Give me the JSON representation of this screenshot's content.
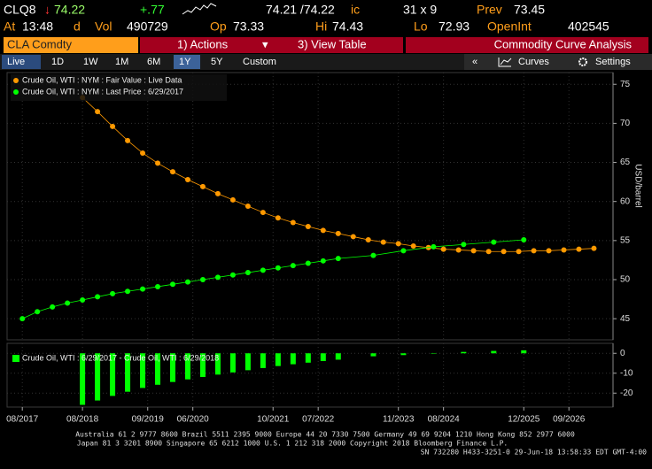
{
  "header": {
    "ticker": "CLQ8",
    "last": "74.22",
    "change": "+.77",
    "bid_ask": "74.21 /74.22",
    "bid_ask_flag": "ic",
    "size": "31 x 9",
    "prev_label": "Prev",
    "prev": "73.45",
    "time_label": "At",
    "time": "13:48",
    "time_flag": "d",
    "vol_label": "Vol",
    "vol": "490729",
    "open_label": "Op",
    "open": "73.33",
    "high_label": "Hi",
    "high": "74.43",
    "low_label": "Lo",
    "low": "72.93",
    "oi_label": "OpenInt",
    "oi": "402545"
  },
  "toolbar": {
    "security": "CLA Comdty",
    "menu_actions": "1) Actions",
    "menu_view": "3) View Table",
    "function_title": "Commodity Curve Analysis"
  },
  "tabs": {
    "items": [
      "Live",
      "1D",
      "1W",
      "1M",
      "6M",
      "1Y",
      "5Y",
      "Custom"
    ],
    "right_back": "«",
    "curves": "Curves",
    "settings": "Settings"
  },
  "chart_data": [
    {
      "type": "line",
      "y_label": "USD/barrel",
      "legend": "top-left",
      "grid": true,
      "xlim": [
        2017.33,
        2027.4
      ],
      "ylim": [
        42.3,
        76.5
      ],
      "yticks": [
        45,
        50,
        55,
        60,
        65,
        70,
        75
      ],
      "series": [
        {
          "name": "Crude Oil, WTI : NYM : Fair Value : Live Data",
          "color": "#ff9900",
          "x": [
            2018.583,
            2018.833,
            2019.083,
            2019.333,
            2019.583,
            2019.833,
            2020.083,
            2020.333,
            2020.583,
            2020.833,
            2021.083,
            2021.333,
            2021.583,
            2021.833,
            2022.083,
            2022.333,
            2022.583,
            2022.833,
            2023.083,
            2023.333,
            2023.583,
            2023.833,
            2024.083,
            2024.333,
            2024.583,
            2024.833,
            2025.083,
            2025.333,
            2025.583,
            2025.833,
            2026.083,
            2026.333,
            2026.583,
            2026.833,
            2027.083
          ],
          "values": [
            73.3,
            71.5,
            69.6,
            67.8,
            66.2,
            64.9,
            63.8,
            62.8,
            61.9,
            61.0,
            60.2,
            59.4,
            58.6,
            57.9,
            57.3,
            56.8,
            56.3,
            55.9,
            55.5,
            55.1,
            54.8,
            54.6,
            54.3,
            54.1,
            53.9,
            53.8,
            53.7,
            53.6,
            53.6,
            53.6,
            53.7,
            53.7,
            53.8,
            53.9,
            54.0
          ]
        },
        {
          "name": "Crude Oil, WTI : NYM : Last Price : 6/29/2017",
          "color": "#00ff00",
          "x": [
            2017.583,
            2017.833,
            2018.083,
            2018.333,
            2018.583,
            2018.833,
            2019.083,
            2019.333,
            2019.583,
            2019.833,
            2020.083,
            2020.333,
            2020.583,
            2020.833,
            2021.083,
            2021.333,
            2021.583,
            2021.833,
            2022.083,
            2022.333,
            2022.583,
            2022.833,
            2023.417,
            2023.917,
            2024.417,
            2024.917,
            2025.417,
            2025.917
          ],
          "values": [
            45.0,
            45.9,
            46.5,
            47.0,
            47.4,
            47.8,
            48.2,
            48.5,
            48.8,
            49.1,
            49.4,
            49.7,
            50.0,
            50.3,
            50.6,
            50.9,
            51.2,
            51.5,
            51.8,
            52.1,
            52.4,
            52.7,
            53.1,
            53.7,
            54.2,
            54.5,
            54.8,
            55.1
          ]
        }
      ]
    },
    {
      "type": "bar",
      "legend": "top-left",
      "grid": true,
      "xlim": [
        2017.33,
        2027.4
      ],
      "ylim": [
        -27,
        5
      ],
      "yticks": [
        0,
        -10,
        -20
      ],
      "xticks": [
        {
          "value": 2017.583,
          "label": "08/2017"
        },
        {
          "value": 2018.583,
          "label": "08/2018"
        },
        {
          "value": 2019.667,
          "label": "09/2019"
        },
        {
          "value": 2020.417,
          "label": "06/2020"
        },
        {
          "value": 2021.75,
          "label": "10/2021"
        },
        {
          "value": 2022.5,
          "label": "07/2022"
        },
        {
          "value": 2023.833,
          "label": "11/2023"
        },
        {
          "value": 2024.583,
          "label": "08/2024"
        },
        {
          "value": 2025.917,
          "label": "12/2025"
        },
        {
          "value": 2026.667,
          "label": "09/2026"
        }
      ],
      "series": [
        {
          "name": "Crude Oil, WTI : 6/29/2017 - Crude Oil, WTI : 6/29/2018",
          "color": "#00ff00",
          "x": [
            2018.583,
            2018.833,
            2019.083,
            2019.333,
            2019.583,
            2019.833,
            2020.083,
            2020.333,
            2020.583,
            2020.833,
            2021.083,
            2021.333,
            2021.583,
            2021.833,
            2022.083,
            2022.333,
            2022.583,
            2022.833,
            2023.417,
            2023.917,
            2024.417,
            2024.917,
            2025.417,
            2025.917
          ],
          "values": [
            -25.9,
            -23.7,
            -21.4,
            -19.3,
            -17.4,
            -15.8,
            -14.4,
            -13.1,
            -11.9,
            -10.7,
            -9.6,
            -8.5,
            -7.4,
            -6.4,
            -5.5,
            -4.7,
            -3.9,
            -3.2,
            -1.5,
            -0.9,
            0.1,
            0.7,
            1.2,
            1.5
          ]
        }
      ]
    }
  ],
  "footer": {
    "line1": "Australia 61 2 9777 8600 Brazil 5511 2395 9000 Europe 44 20 7330 7500 Germany 49 69 9204 1210 Hong Kong 852 2977 6000",
    "line2": "Japan 81 3 3201 8900       Singapore 65 6212 1000       U.S. 1 212 318 2000       Copyright 2018 Bloomberg Finance L.P.",
    "serial": "SN 732280 H433-3251-0 29-Jun-18 13:58:33 EDT  GMT-4:00"
  }
}
